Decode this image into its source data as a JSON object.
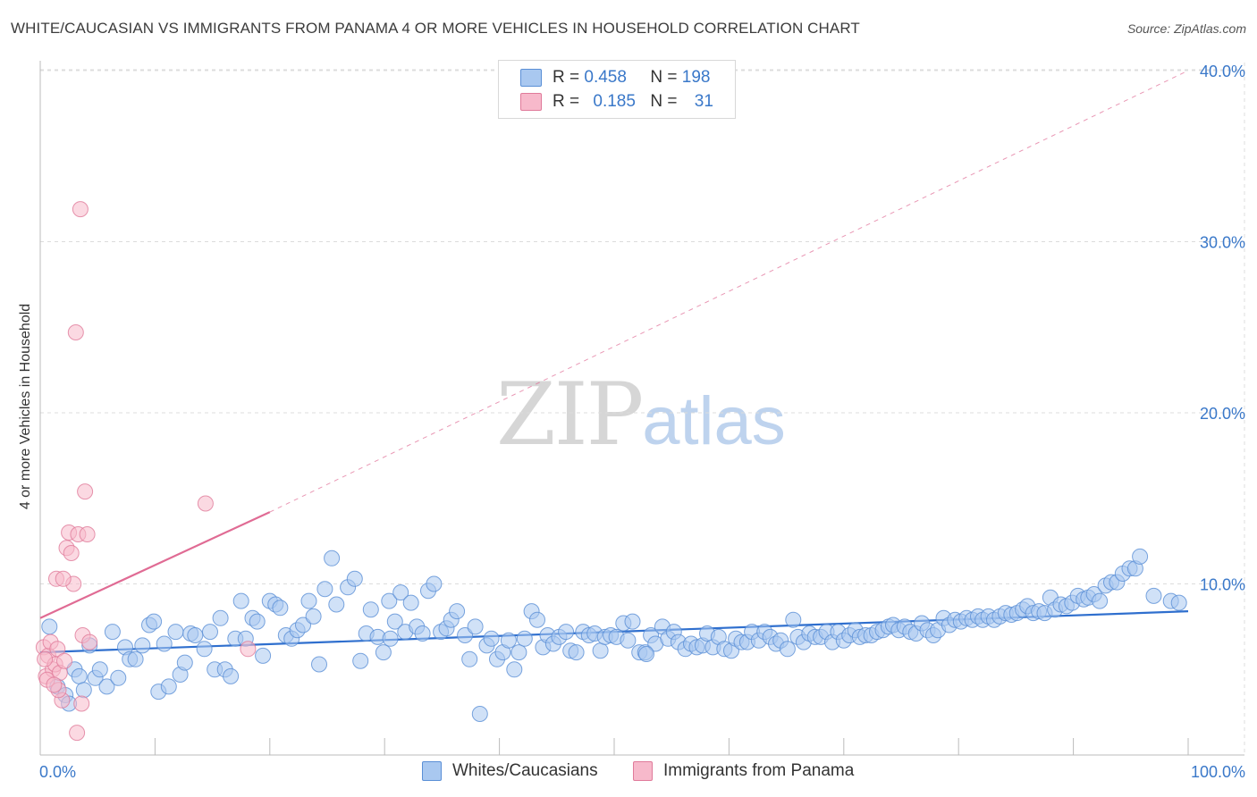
{
  "title": "WHITE/CAUCASIAN VS IMMIGRANTS FROM PANAMA 4 OR MORE VEHICLES IN HOUSEHOLD CORRELATION CHART",
  "source": "Source: ZipAtlas.com",
  "watermark": {
    "zip": "ZIP",
    "atlas": "atlas"
  },
  "legend": {
    "r_label": "R =",
    "n_label": "N =",
    "series": [
      {
        "name": "Whites/Caucasians",
        "r": "0.458",
        "n": "198",
        "fill": "#a9c8f0",
        "stroke": "#5a8fd6"
      },
      {
        "name": "Immigrants from Panama",
        "r": "0.185",
        "n": "31",
        "fill": "#f7b9cb",
        "stroke": "#e07a9a"
      }
    ]
  },
  "chart_data": {
    "type": "scatter",
    "title": "WHITE/CAUCASIAN VS IMMIGRANTS FROM PANAMA 4 OR MORE VEHICLES IN HOUSEHOLD CORRELATION CHART",
    "xlabel": "",
    "ylabel": "4 or more Vehicles in Household",
    "xlim": [
      0,
      100
    ],
    "ylim": [
      0,
      42
    ],
    "x_tick_labels": [
      "0.0%",
      "100.0%"
    ],
    "y_ticks": [
      10,
      20,
      30,
      40
    ],
    "y_tick_labels": [
      "10.0%",
      "20.0%",
      "30.0%",
      "40.0%"
    ],
    "grid": true,
    "colors": {
      "blue_point": "#a9c8f0",
      "blue_line": "#2f6fce",
      "pink_point": "#f7b9cb",
      "pink_line": "#e06b94",
      "tick_label": "#3a78c9",
      "grid": "#dcdcdc"
    },
    "series": [
      {
        "name": "Whites/Caucasians",
        "trend": {
          "x": [
            0,
            100
          ],
          "y": [
            6.0,
            8.4
          ]
        },
        "points": [
          [
            0.8,
            7.5
          ],
          [
            1.5,
            4.0
          ],
          [
            2.2,
            3.5
          ],
          [
            2.5,
            3.0
          ],
          [
            3.0,
            5.0
          ],
          [
            3.4,
            4.6
          ],
          [
            3.8,
            3.8
          ],
          [
            4.3,
            6.4
          ],
          [
            4.8,
            4.5
          ],
          [
            5.2,
            5.0
          ],
          [
            5.8,
            4.0
          ],
          [
            6.3,
            7.2
          ],
          [
            6.8,
            4.5
          ],
          [
            7.4,
            6.3
          ],
          [
            7.8,
            5.6
          ],
          [
            8.3,
            5.6
          ],
          [
            8.9,
            6.4
          ],
          [
            9.5,
            7.6
          ],
          [
            9.9,
            7.8
          ],
          [
            10.3,
            3.7
          ],
          [
            10.8,
            6.5
          ],
          [
            11.2,
            4.0
          ],
          [
            11.8,
            7.2
          ],
          [
            12.2,
            4.7
          ],
          [
            12.6,
            5.4
          ],
          [
            13.1,
            7.1
          ],
          [
            13.5,
            7.0
          ],
          [
            14.3,
            6.2
          ],
          [
            14.8,
            7.2
          ],
          [
            15.2,
            5.0
          ],
          [
            15.7,
            8.0
          ],
          [
            16.1,
            5.0
          ],
          [
            16.6,
            4.6
          ],
          [
            17.0,
            6.8
          ],
          [
            17.5,
            9.0
          ],
          [
            17.9,
            6.8
          ],
          [
            18.5,
            8.0
          ],
          [
            18.9,
            7.8
          ],
          [
            19.4,
            5.8
          ],
          [
            20.0,
            9.0
          ],
          [
            20.5,
            8.8
          ],
          [
            20.9,
            8.6
          ],
          [
            21.4,
            7.0
          ],
          [
            21.9,
            6.8
          ],
          [
            22.4,
            7.3
          ],
          [
            22.9,
            7.6
          ],
          [
            23.4,
            9.0
          ],
          [
            23.8,
            8.1
          ],
          [
            24.3,
            5.3
          ],
          [
            24.8,
            9.7
          ],
          [
            25.4,
            11.5
          ],
          [
            25.8,
            8.8
          ],
          [
            26.8,
            9.8
          ],
          [
            27.4,
            10.3
          ],
          [
            27.9,
            5.5
          ],
          [
            28.4,
            7.1
          ],
          [
            28.8,
            8.5
          ],
          [
            29.4,
            6.9
          ],
          [
            29.9,
            6.0
          ],
          [
            30.4,
            9.0
          ],
          [
            30.9,
            7.8
          ],
          [
            31.4,
            9.5
          ],
          [
            31.8,
            7.2
          ],
          [
            32.3,
            8.9
          ],
          [
            32.8,
            7.5
          ],
          [
            33.3,
            7.1
          ],
          [
            33.8,
            9.6
          ],
          [
            34.3,
            10.0
          ],
          [
            34.9,
            7.2
          ],
          [
            35.4,
            7.4
          ],
          [
            35.8,
            7.9
          ],
          [
            36.3,
            8.4
          ],
          [
            37.0,
            7.0
          ],
          [
            37.4,
            5.6
          ],
          [
            37.9,
            7.5
          ],
          [
            38.3,
            2.4
          ],
          [
            38.9,
            6.4
          ],
          [
            39.3,
            6.8
          ],
          [
            39.8,
            5.6
          ],
          [
            40.3,
            6.0
          ],
          [
            40.8,
            6.7
          ],
          [
            41.3,
            5.0
          ],
          [
            41.7,
            6.0
          ],
          [
            42.2,
            6.8
          ],
          [
            42.8,
            8.4
          ],
          [
            43.3,
            7.9
          ],
          [
            43.8,
            6.3
          ],
          [
            44.2,
            7.0
          ],
          [
            44.7,
            6.5
          ],
          [
            45.2,
            6.9
          ],
          [
            45.8,
            7.2
          ],
          [
            46.2,
            6.1
          ],
          [
            46.7,
            6.0
          ],
          [
            47.3,
            7.2
          ],
          [
            47.8,
            7.0
          ],
          [
            48.3,
            7.1
          ],
          [
            48.8,
            6.1
          ],
          [
            49.2,
            6.9
          ],
          [
            49.7,
            7.0
          ],
          [
            50.2,
            6.9
          ],
          [
            50.8,
            7.7
          ],
          [
            51.2,
            6.7
          ],
          [
            51.6,
            7.8
          ],
          [
            52.2,
            6.0
          ],
          [
            52.7,
            6.0
          ],
          [
            53.2,
            7.0
          ],
          [
            53.6,
            6.5
          ],
          [
            54.2,
            7.5
          ],
          [
            54.7,
            6.8
          ],
          [
            55.2,
            7.2
          ],
          [
            55.6,
            6.6
          ],
          [
            56.2,
            6.2
          ],
          [
            56.7,
            6.5
          ],
          [
            57.2,
            6.3
          ],
          [
            57.7,
            6.4
          ],
          [
            58.1,
            7.1
          ],
          [
            58.6,
            6.3
          ],
          [
            59.1,
            6.9
          ],
          [
            59.6,
            6.2
          ],
          [
            60.2,
            6.1
          ],
          [
            60.6,
            6.8
          ],
          [
            61.1,
            6.6
          ],
          [
            61.6,
            6.6
          ],
          [
            62.0,
            7.2
          ],
          [
            62.6,
            6.7
          ],
          [
            63.1,
            7.2
          ],
          [
            63.6,
            6.9
          ],
          [
            64.1,
            6.5
          ],
          [
            64.5,
            6.7
          ],
          [
            65.1,
            6.2
          ],
          [
            65.6,
            7.9
          ],
          [
            66.0,
            6.9
          ],
          [
            66.5,
            6.6
          ],
          [
            67.0,
            7.1
          ],
          [
            67.5,
            6.9
          ],
          [
            68.0,
            6.9
          ],
          [
            68.5,
            7.2
          ],
          [
            69.0,
            6.6
          ],
          [
            69.5,
            7.2
          ],
          [
            70.0,
            6.7
          ],
          [
            70.5,
            7.0
          ],
          [
            71.0,
            7.3
          ],
          [
            71.4,
            6.9
          ],
          [
            71.9,
            7.0
          ],
          [
            72.4,
            7.0
          ],
          [
            72.9,
            7.2
          ],
          [
            73.4,
            7.3
          ],
          [
            73.9,
            7.5
          ],
          [
            74.3,
            7.6
          ],
          [
            74.8,
            7.3
          ],
          [
            75.3,
            7.5
          ],
          [
            75.8,
            7.2
          ],
          [
            76.3,
            7.1
          ],
          [
            76.8,
            7.7
          ],
          [
            77.3,
            7.3
          ],
          [
            77.8,
            7.0
          ],
          [
            78.2,
            7.3
          ],
          [
            78.7,
            8.0
          ],
          [
            79.2,
            7.6
          ],
          [
            79.7,
            7.9
          ],
          [
            80.2,
            7.8
          ],
          [
            80.7,
            8.0
          ],
          [
            81.2,
            7.9
          ],
          [
            81.7,
            8.1
          ],
          [
            82.1,
            7.9
          ],
          [
            82.6,
            8.1
          ],
          [
            83.1,
            7.9
          ],
          [
            83.6,
            8.1
          ],
          [
            84.1,
            8.3
          ],
          [
            84.6,
            8.2
          ],
          [
            85.1,
            8.3
          ],
          [
            85.6,
            8.5
          ],
          [
            86.0,
            8.7
          ],
          [
            86.5,
            8.3
          ],
          [
            87.0,
            8.4
          ],
          [
            87.5,
            8.3
          ],
          [
            88.0,
            9.2
          ],
          [
            88.4,
            8.5
          ],
          [
            88.9,
            8.8
          ],
          [
            89.4,
            8.7
          ],
          [
            89.9,
            8.9
          ],
          [
            90.4,
            9.3
          ],
          [
            90.9,
            9.1
          ],
          [
            91.3,
            9.2
          ],
          [
            91.8,
            9.4
          ],
          [
            92.3,
            9.0
          ],
          [
            92.8,
            9.9
          ],
          [
            93.3,
            10.1
          ],
          [
            93.8,
            10.1
          ],
          [
            94.3,
            10.6
          ],
          [
            94.9,
            10.9
          ],
          [
            95.4,
            10.9
          ],
          [
            95.8,
            11.6
          ],
          [
            97.0,
            9.3
          ],
          [
            98.5,
            9.0
          ],
          [
            99.2,
            8.9
          ],
          [
            30.5,
            6.8
          ],
          [
            52.8,
            5.9
          ]
        ]
      },
      {
        "name": "Immigrants from Panama",
        "trend": {
          "x": [
            0,
            20
          ],
          "y": [
            8.0,
            14.2
          ],
          "extended": {
            "x": [
              20,
              100
            ],
            "y": [
              14.2,
              40.0
            ]
          }
        },
        "points": [
          [
            0.3,
            6.3
          ],
          [
            0.5,
            4.6
          ],
          [
            0.7,
            5.8
          ],
          [
            0.9,
            6.6
          ],
          [
            1.1,
            5.0
          ],
          [
            1.3,
            5.3
          ],
          [
            1.5,
            6.2
          ],
          [
            1.7,
            4.8
          ],
          [
            1.9,
            3.2
          ],
          [
            2.1,
            5.5
          ],
          [
            2.3,
            12.1
          ],
          [
            2.5,
            13.0
          ],
          [
            2.7,
            11.8
          ],
          [
            2.9,
            10.0
          ],
          [
            3.1,
            24.7
          ],
          [
            3.3,
            12.9
          ],
          [
            3.5,
            31.9
          ],
          [
            1.4,
            10.3
          ],
          [
            1.6,
            3.8
          ],
          [
            2.0,
            10.3
          ],
          [
            3.7,
            7.0
          ],
          [
            3.9,
            15.4
          ],
          [
            4.1,
            12.9
          ],
          [
            4.3,
            6.6
          ],
          [
            3.6,
            3.0
          ],
          [
            3.2,
            1.3
          ],
          [
            14.4,
            14.7
          ],
          [
            18.1,
            6.2
          ],
          [
            0.6,
            4.4
          ],
          [
            1.2,
            4.1
          ],
          [
            0.4,
            5.6
          ]
        ]
      }
    ]
  }
}
